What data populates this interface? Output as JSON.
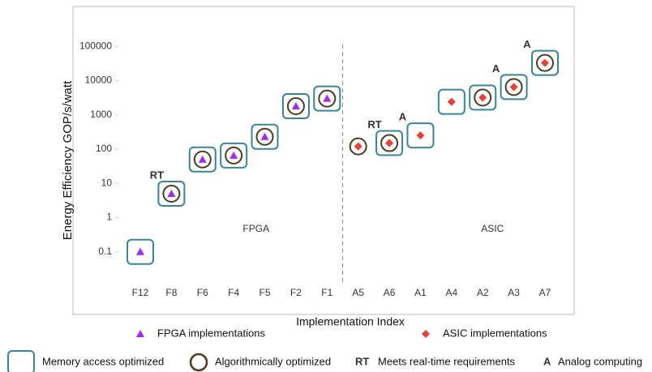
{
  "chart_data": {
    "type": "scatter",
    "y_label": "Energy Efficiency GOP/s/watt",
    "x_label": "Implementation Index",
    "categories": [
      "F12",
      "F8",
      "F6",
      "F4",
      "F5",
      "F2",
      "F1",
      "A5",
      "A6",
      "A1",
      "A4",
      "A2",
      "A3",
      "A7"
    ],
    "series": [
      {
        "name": "FPGA implementations",
        "color": "#a12cf0",
        "marker": "triangle",
        "values": [
          0.1,
          5,
          50,
          65,
          230,
          1800,
          3000,
          null,
          null,
          null,
          null,
          null,
          null,
          null
        ]
      },
      {
        "name": "ASIC implementations",
        "color": "#e5413a",
        "marker": "diamond",
        "values": [
          null,
          null,
          null,
          null,
          null,
          null,
          null,
          120,
          150,
          250,
          2400,
          3200,
          6500,
          33000
        ]
      }
    ],
    "regions": [
      "FPGA",
      "ASIC"
    ],
    "log_scale": true,
    "ylim": [
      0.01,
      1000000
    ],
    "yticks": [
      0.1,
      1,
      10,
      100,
      1000,
      10000,
      100000
    ],
    "memory_access_optimized": {
      "name": "Memory access optimized",
      "color": "#3a8496",
      "flags": [
        true,
        true,
        true,
        true,
        true,
        true,
        true,
        false,
        true,
        true,
        true,
        true,
        true,
        true
      ]
    },
    "algorithmically_optimized": {
      "name": "Algorithmically optimized",
      "color": "#4b3b22",
      "flags": [
        false,
        true,
        true,
        true,
        true,
        true,
        true,
        true,
        true,
        false,
        false,
        true,
        true,
        true
      ]
    },
    "real_time": {
      "label": "RT",
      "name": "Meets real-time  requirements",
      "color": "#a0302f",
      "flags": [
        false,
        true,
        false,
        false,
        false,
        false,
        false,
        false,
        true,
        false,
        false,
        false,
        false,
        false
      ]
    },
    "analog": {
      "label": "A",
      "name": "Analog computing",
      "color": "#1f3d6e",
      "flags": [
        false,
        false,
        false,
        false,
        false,
        false,
        false,
        false,
        false,
        true,
        false,
        false,
        true,
        true
      ]
    }
  }
}
